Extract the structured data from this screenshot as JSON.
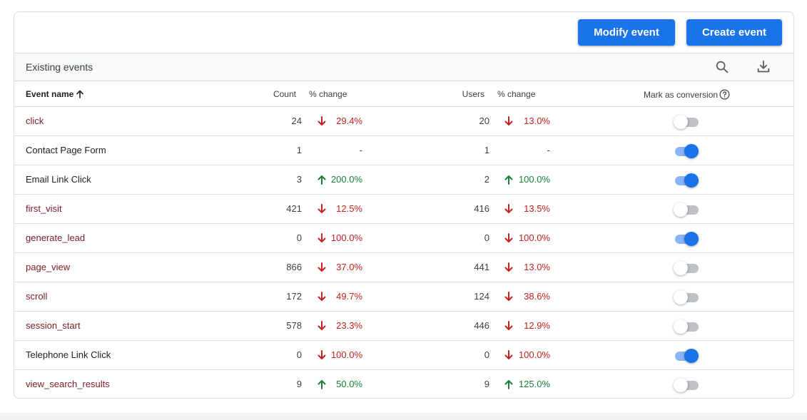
{
  "actions": {
    "modify_label": "Modify event",
    "create_label": "Create event"
  },
  "toolbar": {
    "title": "Existing events",
    "search_icon": "search-icon",
    "download_icon": "download-icon"
  },
  "table": {
    "headers": {
      "event_name": "Event name",
      "count": "Count",
      "count_change": "% change",
      "users": "Users",
      "users_change": "% change",
      "conversion": "Mark as conversion"
    },
    "sort": "ascending",
    "rows": [
      {
        "name": "click",
        "count": "24",
        "count_change": "29.4%",
        "count_dir": "down",
        "users": "20",
        "users_change": "13.0%",
        "users_dir": "down",
        "conversion": false
      },
      {
        "name": "Contact Page Form",
        "count": "1",
        "count_change": "-",
        "count_dir": "none",
        "users": "1",
        "users_change": "-",
        "users_dir": "none",
        "conversion": true
      },
      {
        "name": "Email Link Click",
        "count": "3",
        "count_change": "200.0%",
        "count_dir": "up",
        "users": "2",
        "users_change": "100.0%",
        "users_dir": "up",
        "conversion": true
      },
      {
        "name": "first_visit",
        "count": "421",
        "count_change": "12.5%",
        "count_dir": "down",
        "users": "416",
        "users_change": "13.5%",
        "users_dir": "down",
        "conversion": false
      },
      {
        "name": "generate_lead",
        "count": "0",
        "count_change": "100.0%",
        "count_dir": "down",
        "users": "0",
        "users_change": "100.0%",
        "users_dir": "down",
        "conversion": true
      },
      {
        "name": "page_view",
        "count": "866",
        "count_change": "37.0%",
        "count_dir": "down",
        "users": "441",
        "users_change": "13.0%",
        "users_dir": "down",
        "conversion": false
      },
      {
        "name": "scroll",
        "count": "172",
        "count_change": "49.7%",
        "count_dir": "down",
        "users": "124",
        "users_change": "38.6%",
        "users_dir": "down",
        "conversion": false
      },
      {
        "name": "session_start",
        "count": "578",
        "count_change": "23.3%",
        "count_dir": "down",
        "users": "446",
        "users_change": "12.9%",
        "users_dir": "down",
        "conversion": false
      },
      {
        "name": "Telephone Link Click",
        "count": "0",
        "count_change": "100.0%",
        "count_dir": "down",
        "users": "0",
        "users_change": "100.0%",
        "users_dir": "down",
        "conversion": true
      },
      {
        "name": "view_search_results",
        "count": "9",
        "count_change": "50.0%",
        "count_dir": "up",
        "users": "9",
        "users_change": "125.0%",
        "users_dir": "up",
        "conversion": false
      }
    ]
  },
  "colors": {
    "primary": "#1a73e8",
    "down": "#c5221f",
    "up": "#188038",
    "event_link": "#7b1a24"
  }
}
